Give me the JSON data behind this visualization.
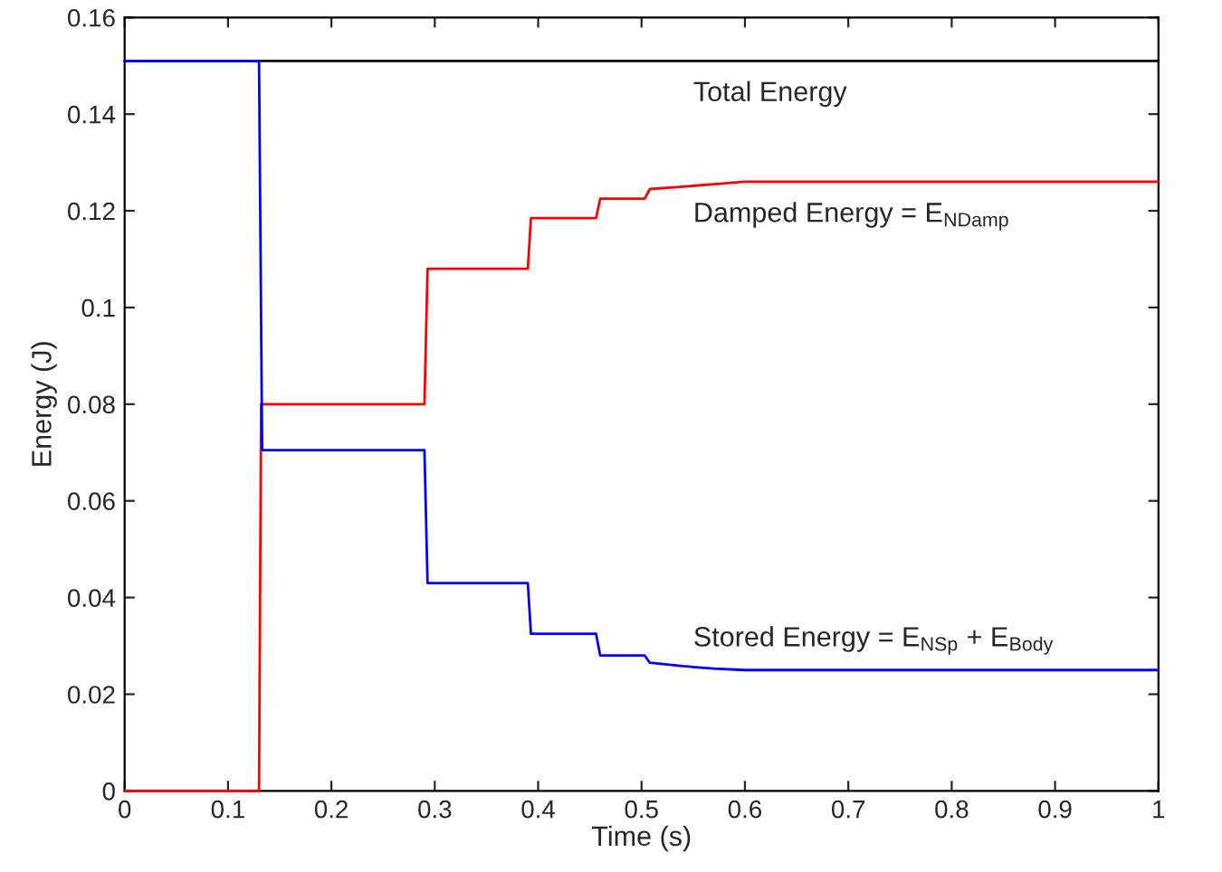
{
  "chart_data": {
    "type": "line",
    "xlabel": "Time (s)",
    "ylabel": "Energy (J)",
    "xlim": [
      0,
      1
    ],
    "ylim": [
      0,
      0.16
    ],
    "xticks": [
      0,
      0.1,
      0.2,
      0.3,
      0.4,
      0.5,
      0.6,
      0.7,
      0.8,
      0.9,
      1
    ],
    "yticks": [
      0,
      0.02,
      0.04,
      0.06,
      0.08,
      0.1,
      0.12,
      0.14,
      0.16
    ],
    "grid": false,
    "series": [
      {
        "name": "Total Energy",
        "color": "#000000",
        "x": [
          0,
          1
        ],
        "values": [
          0.151,
          0.151
        ]
      },
      {
        "name": "Damped Energy = E$_{NDamp}$",
        "color": "#ff0000",
        "x": [
          0,
          0.13,
          0.132,
          0.29,
          0.293,
          0.39,
          0.393,
          0.456,
          0.46,
          0.503,
          0.508,
          0.54,
          0.57,
          0.6,
          1
        ],
        "values": [
          0,
          0,
          0.08,
          0.08,
          0.108,
          0.108,
          0.1185,
          0.1185,
          0.1225,
          0.1225,
          0.1245,
          0.125,
          0.1255,
          0.126,
          0.126
        ]
      },
      {
        "name": "Stored Energy = E$_{NSp}$ + E$_{Body}$",
        "color": "#0000ff",
        "x": [
          0,
          0.13,
          0.133,
          0.29,
          0.293,
          0.39,
          0.393,
          0.456,
          0.46,
          0.503,
          0.508,
          0.54,
          0.57,
          0.6,
          1
        ],
        "values": [
          0.151,
          0.151,
          0.0705,
          0.0705,
          0.043,
          0.043,
          0.0325,
          0.0325,
          0.028,
          0.028,
          0.0265,
          0.0258,
          0.0253,
          0.025,
          0.025
        ]
      }
    ]
  }
}
